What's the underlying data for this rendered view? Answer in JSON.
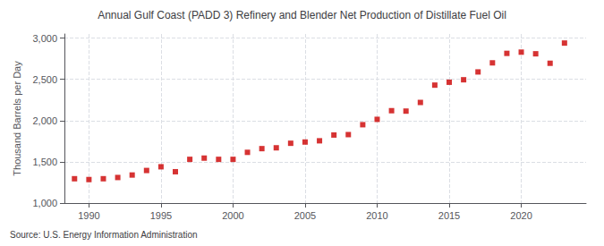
{
  "chart_data": {
    "type": "scatter",
    "title": "Annual Gulf Coast (PADD 3) Refinery and Blender Net Production of Distillate Fuel Oil",
    "ylabel": "Thousand Barrels per Day",
    "source": "Source: U.S. Energy Information Administration",
    "x": [
      1989,
      1990,
      1991,
      1992,
      1993,
      1994,
      1995,
      1996,
      1997,
      1998,
      1999,
      2000,
      2001,
      2002,
      2003,
      2004,
      2005,
      2006,
      2007,
      2008,
      2009,
      2010,
      2011,
      2012,
      2013,
      2014,
      2015,
      2016,
      2017,
      2018,
      2019,
      2020,
      2021,
      2022,
      2023
    ],
    "values": [
      1295,
      1285,
      1295,
      1310,
      1340,
      1395,
      1440,
      1380,
      1530,
      1545,
      1530,
      1530,
      1615,
      1660,
      1670,
      1725,
      1740,
      1755,
      1825,
      1830,
      1950,
      2015,
      2120,
      2115,
      2220,
      2430,
      2465,
      2495,
      2590,
      2700,
      2815,
      2830,
      2810,
      2695,
      2940
    ],
    "color": "#cc0000",
    "marker": "square",
    "xlim": [
      1988.3,
      2024.5
    ],
    "xticks": [
      1990,
      1995,
      2000,
      2005,
      2010,
      2015,
      2020
    ],
    "ylim": [
      1000,
      3050
    ],
    "yticks": [
      {
        "value": 1000,
        "label": "1,000"
      },
      {
        "value": 1500,
        "label": "1,500"
      },
      {
        "value": 2000,
        "label": "2,000"
      },
      {
        "value": 2500,
        "label": "2,500"
      },
      {
        "value": 3000,
        "label": "3,000"
      }
    ],
    "grid": true
  }
}
